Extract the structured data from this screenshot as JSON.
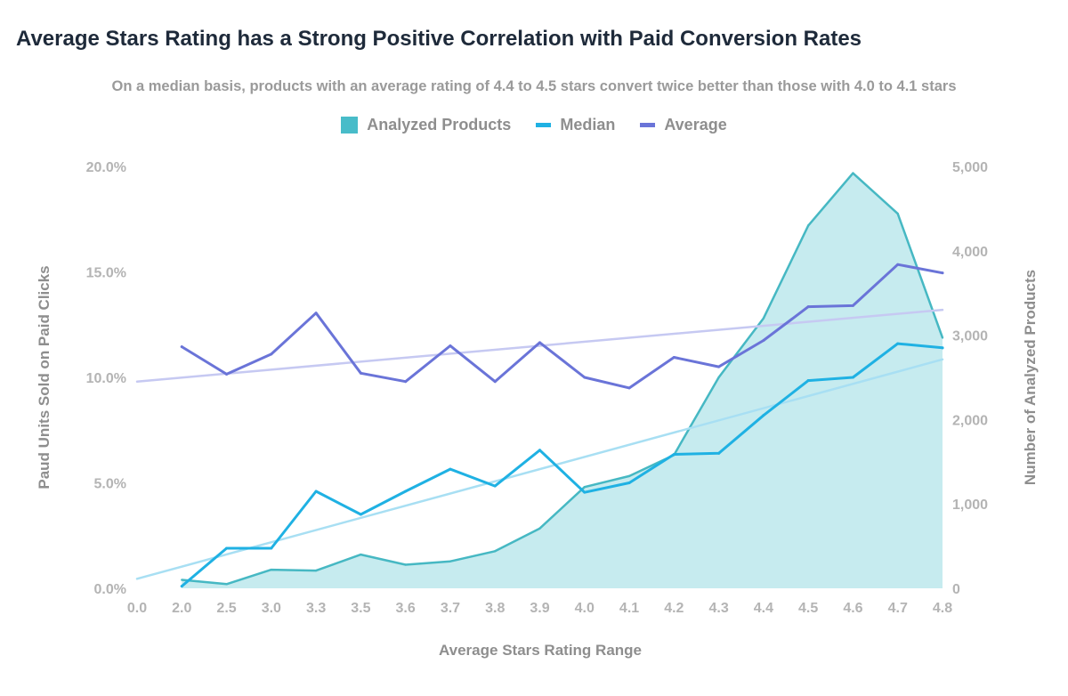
{
  "chart_data": {
    "type": "line",
    "title": "Average Stars Rating has a Strong Positive Correlation with Paid Conversion Rates",
    "subtitle": "On a median basis, products with an average rating of 4.4 to 4.5 stars convert twice better than those with 4.0 to 4.1 stars",
    "xlabel": "Average Stars Rating Range",
    "ylabel_left": "Paud Units Sold on Paid Clicks",
    "ylabel_right": "Number of Analyzed Products",
    "categories": [
      "0.0",
      "2.0",
      "2.5",
      "3.0",
      "3.3",
      "3.5",
      "3.6",
      "3.7",
      "3.8",
      "3.9",
      "4.0",
      "4.1",
      "4.2",
      "4.3",
      "4.4",
      "4.5",
      "4.6",
      "4.7",
      "4.8"
    ],
    "ylim_left": [
      0,
      20
    ],
    "ylim_right": [
      0,
      5000
    ],
    "yticks_left": [
      "0.0%",
      "5.0%",
      "10.0%",
      "15.0%",
      "20.0%"
    ],
    "yticks_right": [
      "0",
      "1,000",
      "2,000",
      "3,000",
      "4,000",
      "5,000"
    ],
    "colors": {
      "area_fill": "#c6ebef",
      "area_line": "#46b8c3",
      "median": "#1fb1e3",
      "average": "#6a74d8",
      "median_trend": "#a8dff3",
      "average_trend": "#c6c9f2",
      "legend_area": "#48bcc9"
    },
    "series": [
      {
        "name": "Analyzed Products",
        "axis": "right",
        "kind": "area",
        "values": [
          null,
          100,
          50,
          220,
          210,
          400,
          280,
          320,
          440,
          710,
          1200,
          1330,
          1580,
          2500,
          3200,
          4300,
          4920,
          4440,
          2970
        ]
      },
      {
        "name": "Median",
        "axis": "left",
        "kind": "line",
        "values": [
          null,
          0.1,
          1.9,
          1.9,
          4.6,
          3.5,
          4.6,
          5.65,
          4.85,
          6.55,
          4.55,
          5.0,
          6.35,
          6.4,
          8.2,
          9.85,
          10.0,
          11.6,
          11.4
        ]
      },
      {
        "name": "Average",
        "axis": "left",
        "kind": "line",
        "values": [
          null,
          11.45,
          10.15,
          11.1,
          13.05,
          10.2,
          9.8,
          11.5,
          9.8,
          11.65,
          10.0,
          9.5,
          10.95,
          10.5,
          11.75,
          13.35,
          13.4,
          15.35,
          14.95
        ]
      }
    ],
    "trendlines": [
      {
        "name": "Median trend",
        "axis": "left",
        "from": 0.45,
        "to": 10.85
      },
      {
        "name": "Average trend",
        "axis": "left",
        "from": 9.8,
        "to": 13.2
      }
    ],
    "legend": [
      "Analyzed Products",
      "Median",
      "Average"
    ]
  }
}
